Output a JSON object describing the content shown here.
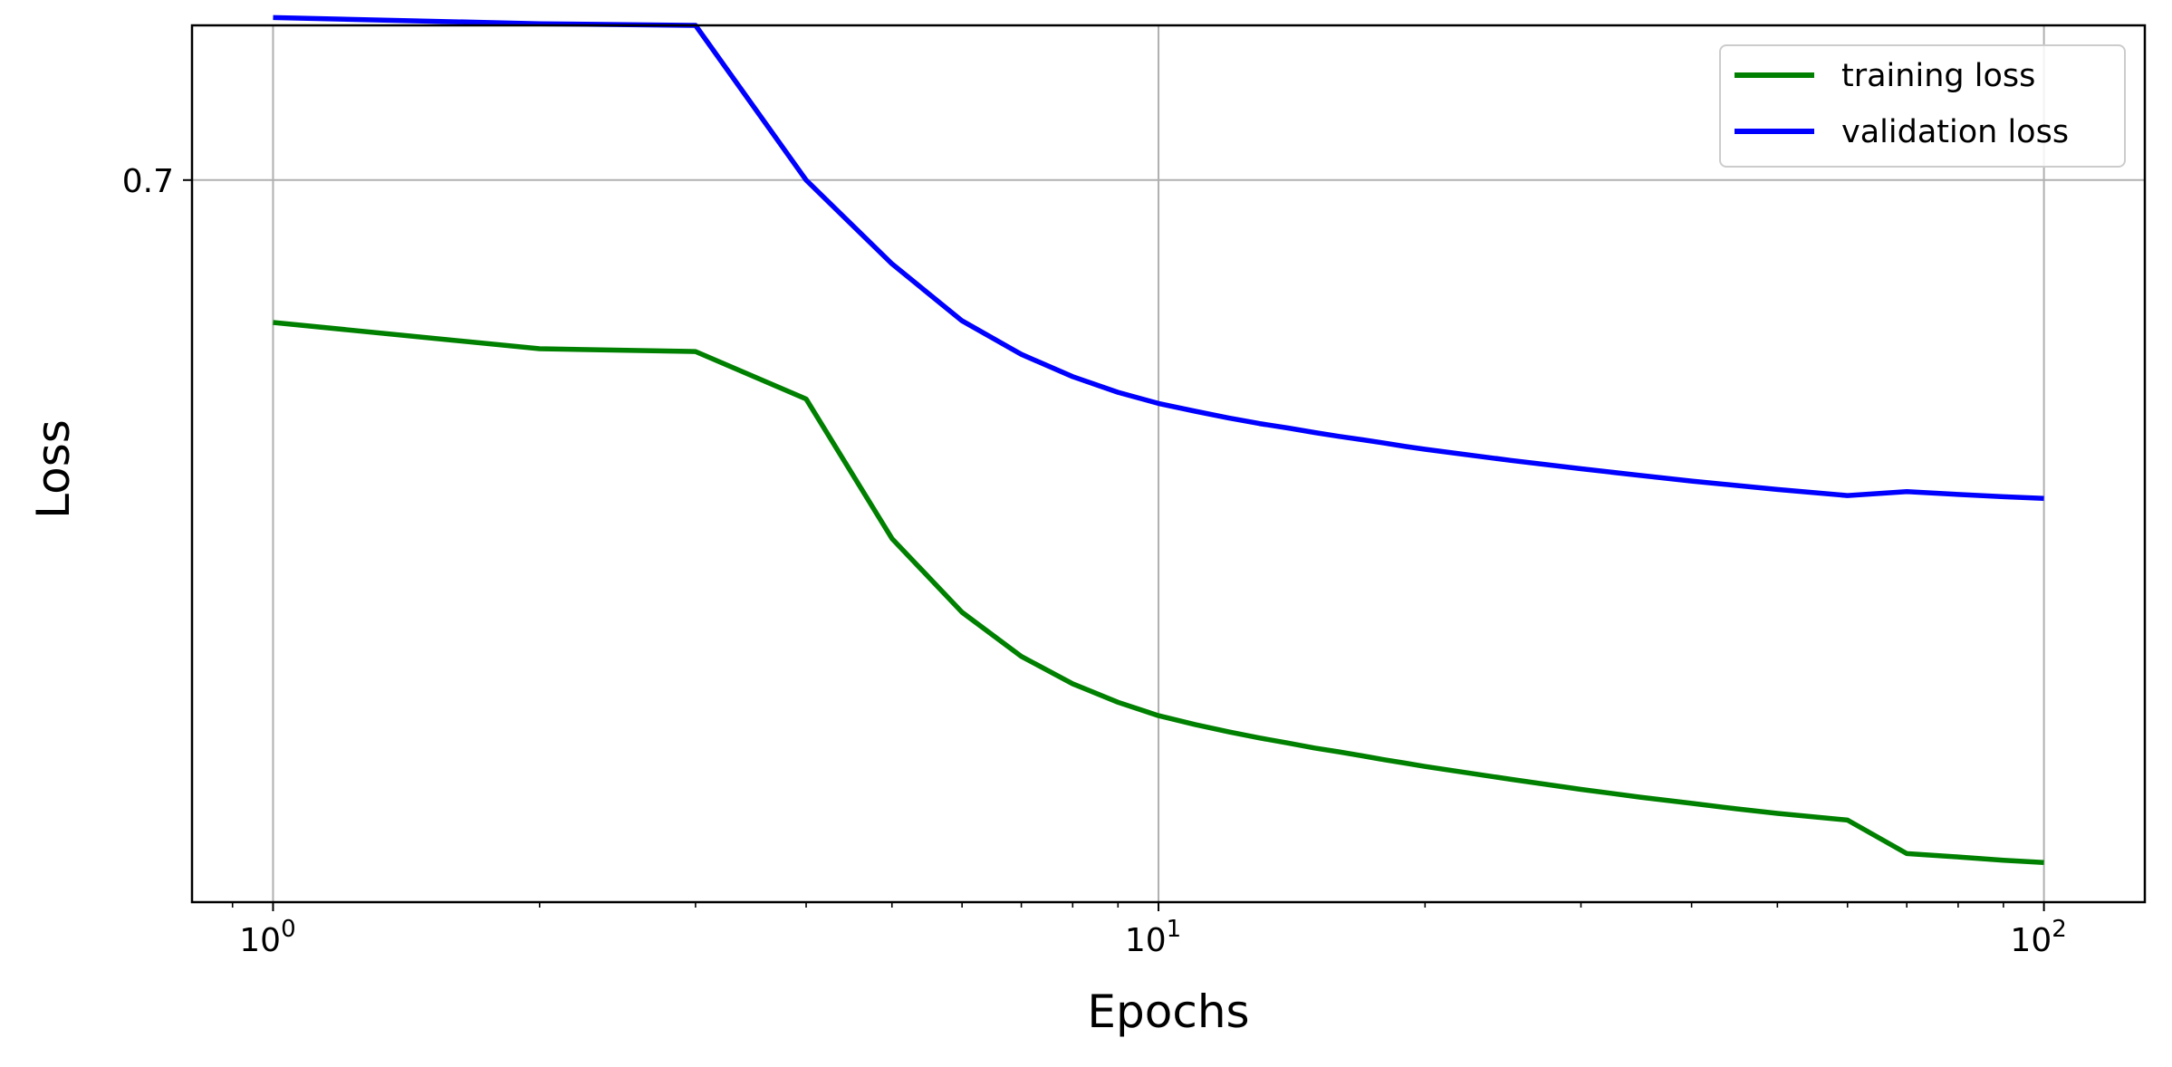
{
  "chart_data": {
    "type": "line",
    "xlabel": "Epochs",
    "ylabel": "Loss",
    "x_scale": "log",
    "xlim": [
      0.81,
      130
    ],
    "ylim": [
      0.5707,
      0.7277
    ],
    "grid": true,
    "legend_position": "top-right",
    "x_major_ticks": [
      {
        "value": 1,
        "base": "10",
        "exp": "0"
      },
      {
        "value": 10,
        "base": "10",
        "exp": "1"
      },
      {
        "value": 100,
        "base": "10",
        "exp": "2"
      }
    ],
    "y_ticks": [
      {
        "value": 0.7,
        "label": "0.7"
      }
    ],
    "x": [
      1,
      2,
      3,
      4,
      5,
      6,
      7,
      8,
      9,
      10,
      11,
      12,
      13,
      14,
      15,
      16,
      17,
      18,
      19,
      20,
      25,
      30,
      35,
      40,
      45,
      50,
      60,
      70,
      80,
      90,
      100
    ],
    "series": [
      {
        "name": "training loss",
        "color": "#008000",
        "values": [
          0.6745,
          0.6698,
          0.6693,
          0.6608,
          0.6358,
          0.6226,
          0.6147,
          0.6098,
          0.6065,
          0.6041,
          0.6025,
          0.6012,
          0.6001,
          0.5992,
          0.5983,
          0.5976,
          0.5969,
          0.5962,
          0.5956,
          0.595,
          0.5927,
          0.5909,
          0.5895,
          0.5884,
          0.5874,
          0.5866,
          0.5854,
          0.5794,
          0.5788,
          0.5782,
          0.5778
        ]
      },
      {
        "name": "validation loss",
        "color": "#0000ff",
        "values": [
          0.7291,
          0.728,
          0.7277,
          0.7,
          0.685,
          0.6748,
          0.6688,
          0.6648,
          0.662,
          0.66,
          0.6586,
          0.6574,
          0.6564,
          0.6556,
          0.6548,
          0.6541,
          0.6535,
          0.6529,
          0.6523,
          0.6518,
          0.6498,
          0.6483,
          0.6471,
          0.6461,
          0.6453,
          0.6446,
          0.6435,
          0.6442,
          0.6437,
          0.6433,
          0.643
        ]
      }
    ]
  }
}
